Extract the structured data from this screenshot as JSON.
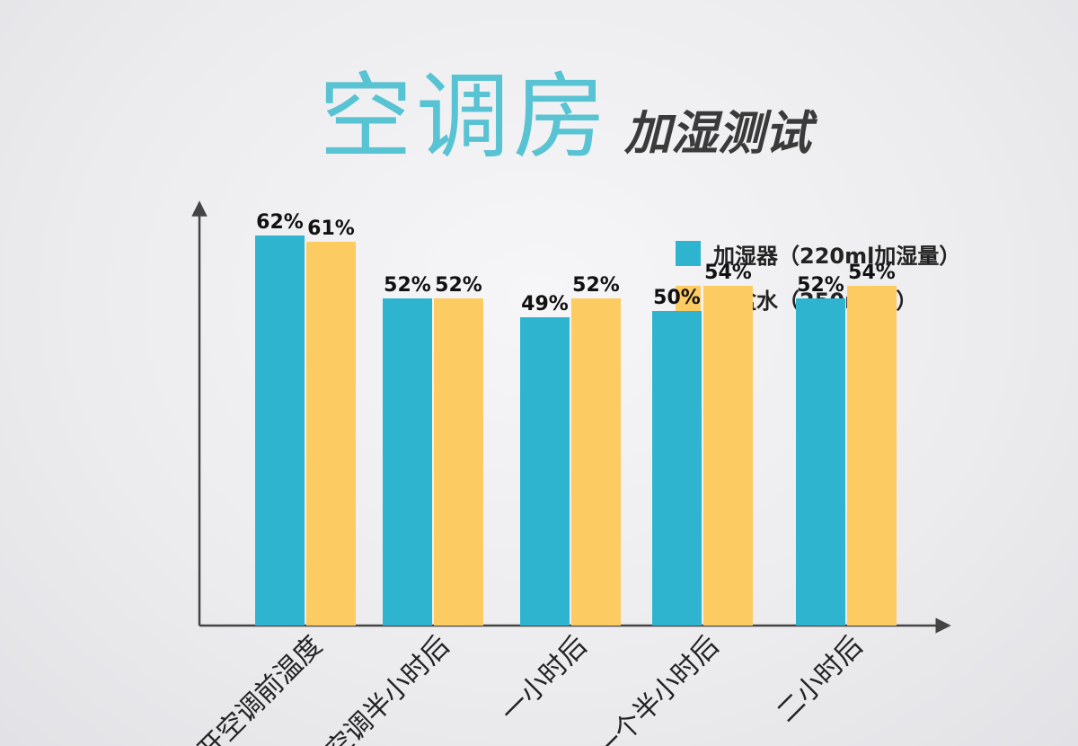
{
  "title": {
    "main": "空调房",
    "sub": "加湿测试"
  },
  "colors": {
    "humidifier": "#2eb4cf",
    "bowl_of_water": "#fccb62",
    "axis": "#444444",
    "title": "#58c3d3"
  },
  "legend": [
    {
      "label": "加湿器（220ml加湿量）",
      "color": "#2eb4cf"
    },
    {
      "label": "一盆水（250ml水）",
      "color": "#fccb62"
    }
  ],
  "chart_data": {
    "type": "bar",
    "title": "空调房 加湿测试",
    "xlabel": "",
    "ylabel": "",
    "categories": [
      "开空调前温度",
      "空调半小时后",
      "一小时后",
      "一个半小时后",
      "二小时后"
    ],
    "series": [
      {
        "name": "加湿器（220ml加湿量）",
        "values": [
          62,
          52,
          49,
          50,
          52
        ],
        "labels": [
          "62%",
          "52%",
          "49%",
          "50%",
          "52%"
        ]
      },
      {
        "name": "一盆水（250ml水）",
        "values": [
          61,
          52,
          52,
          54,
          54
        ],
        "labels": [
          "61%",
          "52%",
          "52%",
          "54%",
          "54%"
        ]
      }
    ],
    "ylim": [
      0,
      100
    ],
    "grid": false,
    "legend_position": "top-right",
    "y_axis_ticks": false
  }
}
